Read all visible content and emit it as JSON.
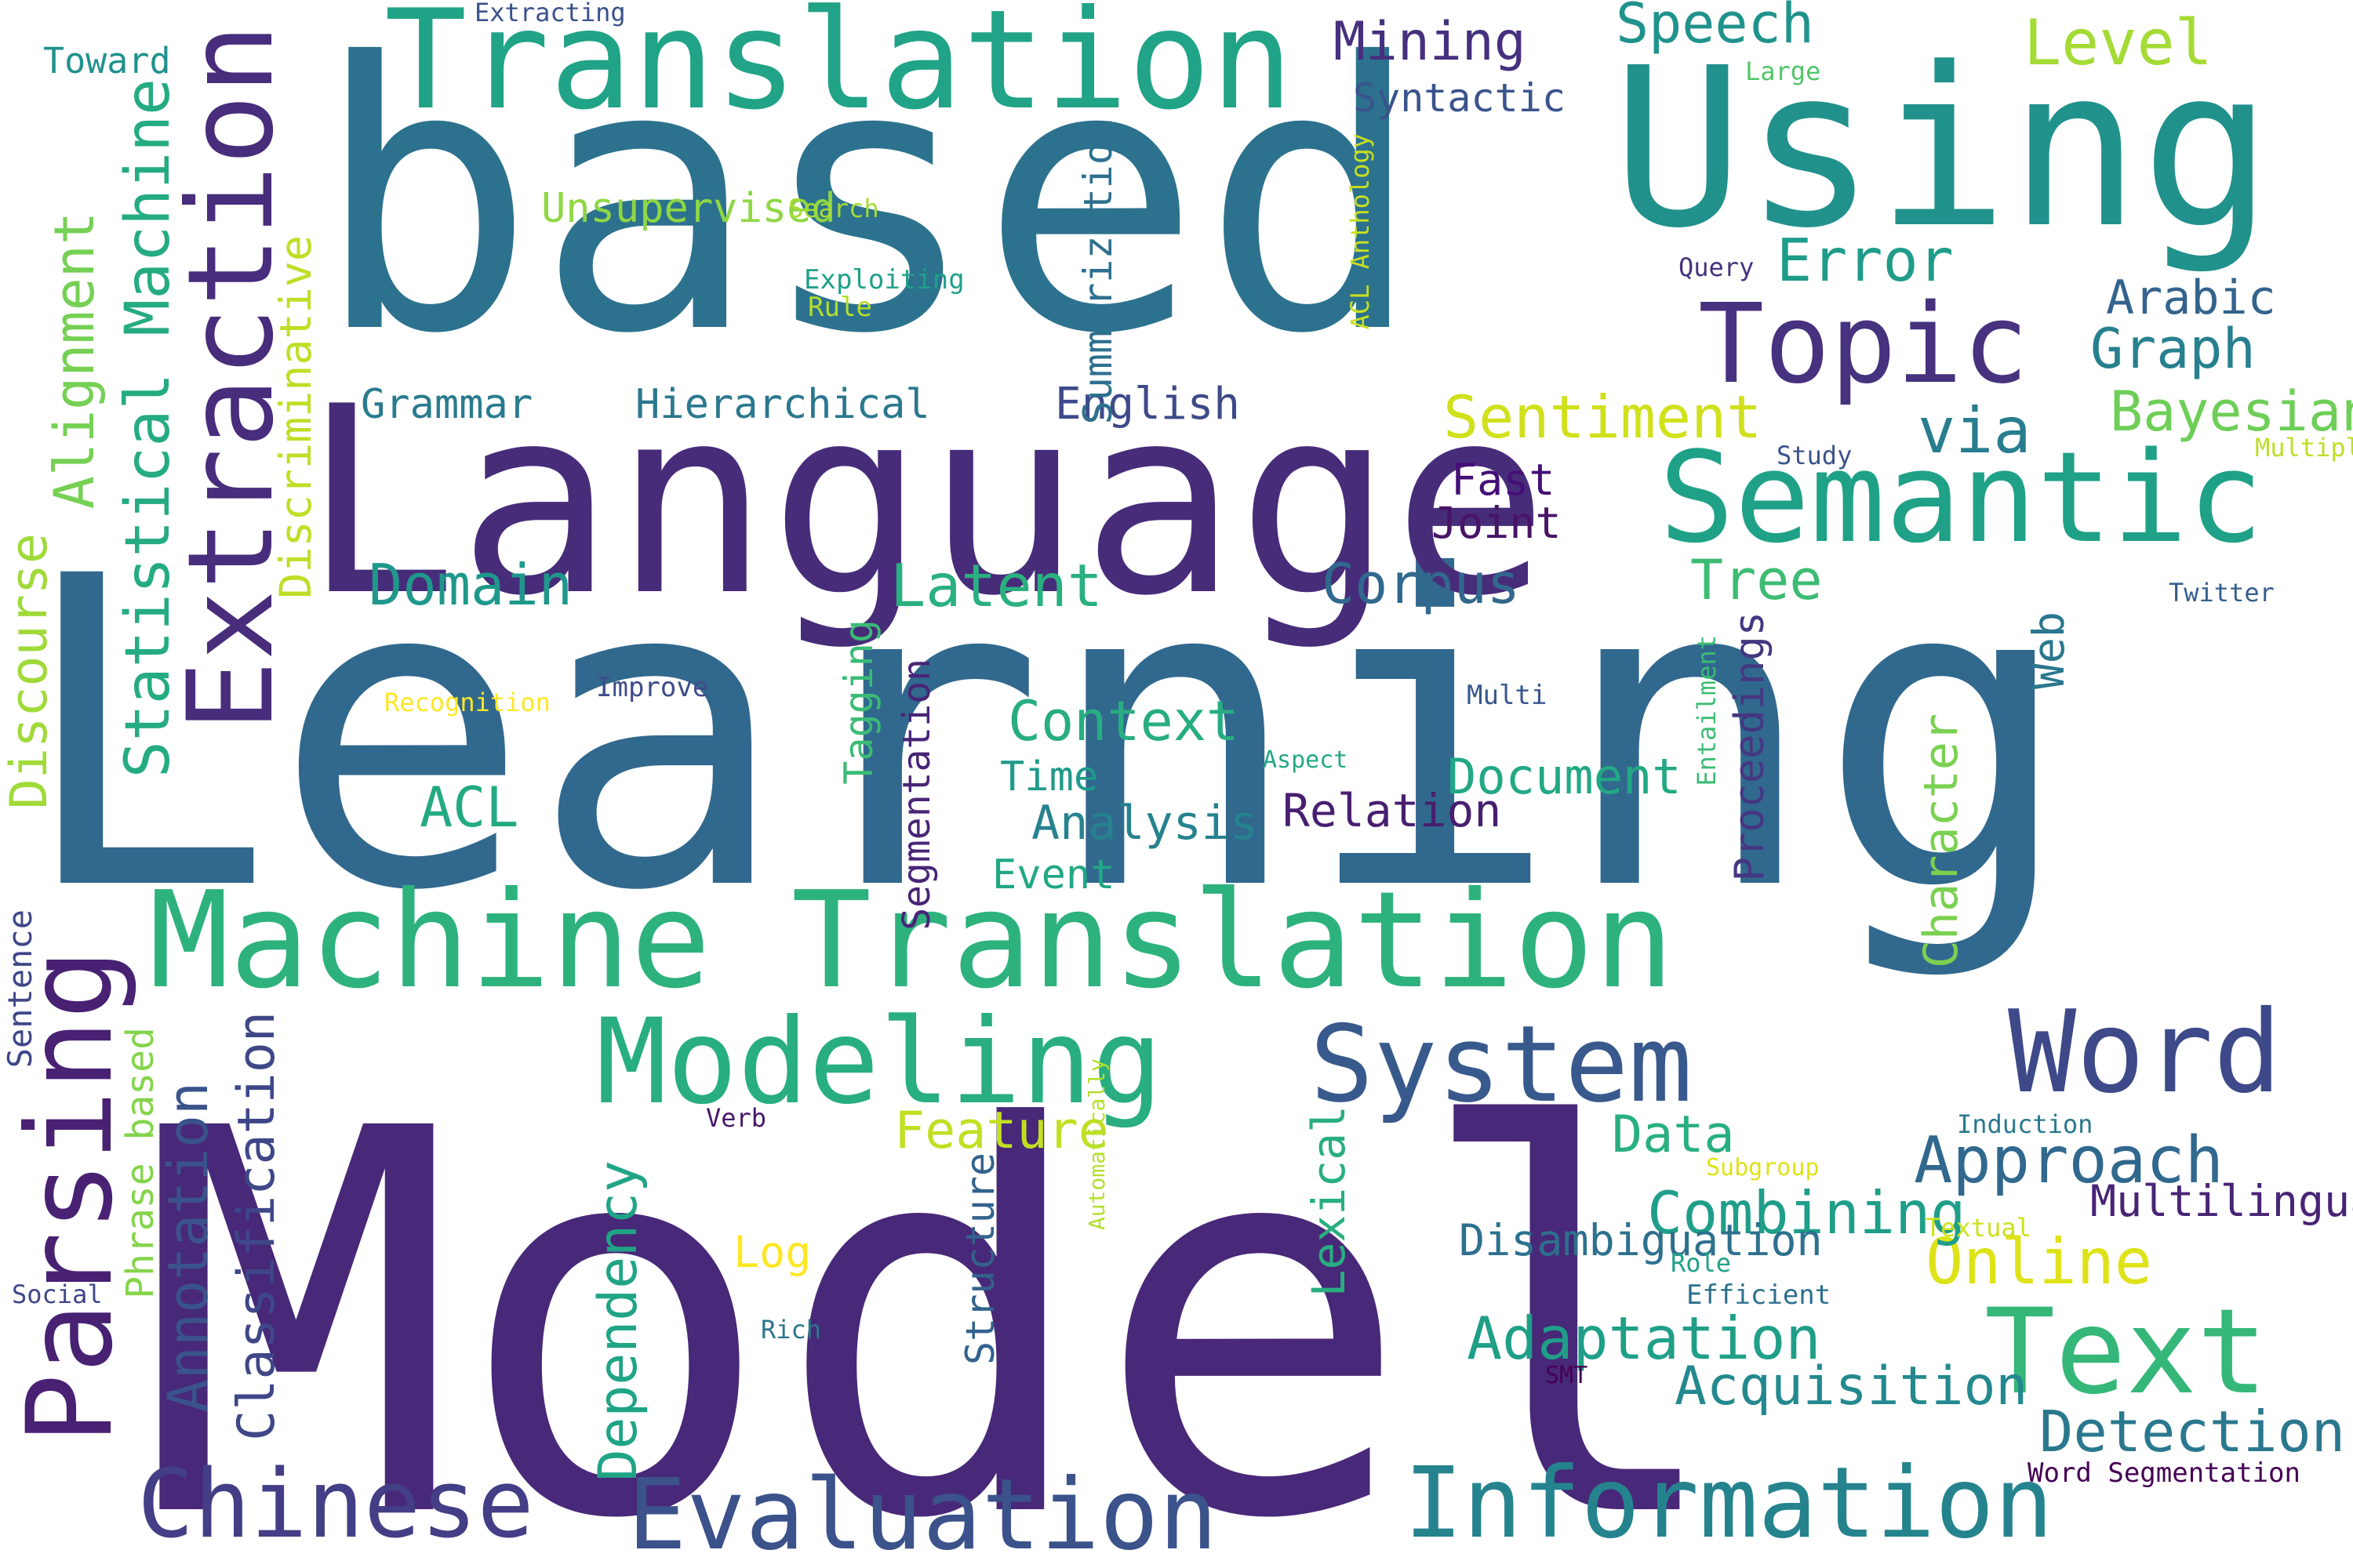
{
  "words": [
    {
      "key": "model",
      "text": "Model",
      "color": "#482878"
    },
    {
      "key": "learning",
      "text": "Learning",
      "color": "#31688e"
    },
    {
      "key": "based",
      "text": "based",
      "color": "#2c728e"
    },
    {
      "key": "language",
      "text": "Language",
      "color": "#472c7a"
    },
    {
      "key": "using",
      "text": "Using",
      "color": "#21918c"
    },
    {
      "key": "translation_top",
      "text": "Translation",
      "color": "#20a386"
    },
    {
      "key": "machine_translation",
      "text": "Machine Translation",
      "color": "#2db27d"
    },
    {
      "key": "semantic",
      "text": "Semantic",
      "color": "#1fa187"
    },
    {
      "key": "topic",
      "text": "Topic",
      "color": "#46327e"
    },
    {
      "key": "extraction",
      "text": "Extraction",
      "color": "#472d7b"
    },
    {
      "key": "parsing",
      "text": "Parsing",
      "color": "#482173"
    },
    {
      "key": "modeling",
      "text": "Modeling",
      "color": "#28ae80"
    },
    {
      "key": "system",
      "text": "System",
      "color": "#38598c"
    },
    {
      "key": "word",
      "text": "Word",
      "color": "#3e4989"
    },
    {
      "key": "text",
      "text": "Text",
      "color": "#35b779"
    },
    {
      "key": "evaluation",
      "text": "Evaluation",
      "color": "#3b528b"
    },
    {
      "key": "information",
      "text": "Information",
      "color": "#25838e"
    },
    {
      "key": "chinese",
      "text": "Chinese",
      "color": "#433e85"
    },
    {
      "key": "statistical_machine",
      "text": "Statistical Machine",
      "color": "#25ab82"
    },
    {
      "key": "alignment",
      "text": "Alignment",
      "color": "#75d054"
    },
    {
      "key": "discourse",
      "text": "Discourse",
      "color": "#a0da39"
    },
    {
      "key": "discriminative",
      "text": "Discriminative",
      "color": "#bddf26"
    },
    {
      "key": "annotation",
      "text": "Annotation",
      "color": "#297b8e"
    },
    {
      "key": "classification",
      "text": "Classification",
      "color": "#2a788e"
    },
    {
      "key": "phrase_based",
      "text": "Phrase based",
      "color": "#3e4a89"
    },
    {
      "key": "sentence",
      "text": "Sentence",
      "color": "#d0e11c"
    },
    {
      "key": "dependency",
      "text": "Dependency",
      "color": "#31688e"
    },
    {
      "key": "structure",
      "text": "Structure",
      "color": "#dde318"
    },
    {
      "key": "lexical",
      "text": "Lexical",
      "color": "#1f988b"
    },
    {
      "key": "toward",
      "text": "Toward",
      "color": "#2ab07f"
    },
    {
      "key": "grammar",
      "text": "Grammar",
      "color": "#31688e"
    },
    {
      "key": "hierarchical",
      "text": "Hierarchical",
      "color": "#3dbc74"
    },
    {
      "key": "english",
      "text": "English",
      "color": "#46307e"
    },
    {
      "key": "sentiment",
      "text": "Sentiment",
      "color": "#20928c"
    },
    {
      "key": "approach",
      "text": "Approach",
      "color": "#a5db36"
    },
    {
      "key": "online",
      "text": "Online",
      "color": "#1e9c89"
    },
    {
      "key": "domain",
      "text": "Domain",
      "color": "#33638d"
    },
    {
      "key": "latent",
      "text": "Latent",
      "color": "#27808e"
    },
    {
      "key": "corpus",
      "text": "Corpus",
      "color": "#6ece58"
    },
    {
      "key": "tree",
      "text": "Tree",
      "color": "#287d8e"
    },
    {
      "key": "mining",
      "text": "Mining",
      "color": "#440f76"
    },
    {
      "key": "speech",
      "text": "Speech",
      "color": "#481467"
    },
    {
      "key": "level",
      "text": "Level",
      "color": "#27ad81"
    },
    {
      "key": "error",
      "text": "Error",
      "color": "#24aa83"
    },
    {
      "key": "arabic",
      "text": "Arabic",
      "color": "#1f9a8a"
    },
    {
      "key": "graph",
      "text": "Graph",
      "color": "#26828e"
    },
    {
      "key": "bayesian",
      "text": "Bayesian",
      "color": "#22a785"
    },
    {
      "key": "via",
      "text": "via",
      "color": "#481f70"
    },
    {
      "key": "fast",
      "text": "Fast",
      "color": "#22a884"
    },
    {
      "key": "joint",
      "text": "Joint",
      "color": "#c2df23"
    },
    {
      "key": "context",
      "text": "Context",
      "color": "#29af7f"
    },
    {
      "key": "acl",
      "text": "ACL",
      "color": "#1f9e89"
    },
    {
      "key": "time",
      "text": "Time",
      "color": "#2d708e"
    },
    {
      "key": "analysis",
      "text": "Analysis",
      "color": "#1f9f88"
    },
    {
      "key": "event",
      "text": "Event",
      "color": "#23898e"
    },
    {
      "key": "relation",
      "text": "Relation",
      "color": "#2a788e"
    },
    {
      "key": "document",
      "text": "Document",
      "color": "#482475"
    },
    {
      "key": "feature",
      "text": "Feature",
      "color": "#3a548c"
    },
    {
      "key": "data",
      "text": "Data",
      "color": "#8fd744"
    },
    {
      "key": "combining",
      "text": "Combining",
      "color": "#2d708e"
    },
    {
      "key": "disambiguation",
      "text": "Disambiguation",
      "color": "#3bbb75"
    },
    {
      "key": "adaptation",
      "text": "Adaptation",
      "color": "#482576"
    },
    {
      "key": "acquisition",
      "text": "Acquisition",
      "color": "#453781"
    },
    {
      "key": "detection",
      "text": "Detection",
      "color": "#7ad151"
    },
    {
      "key": "multilingual",
      "text": "Multilingual",
      "color": "#2a778e"
    },
    {
      "key": "syntactic",
      "text": "Syntactic",
      "color": "#3a538b"
    },
    {
      "key": "unsupervised",
      "text": "Unsupervised",
      "color": "#3f4788"
    },
    {
      "key": "summarization",
      "text": "Summarization",
      "color": "#84d44b"
    },
    {
      "key": "tagging",
      "text": "Tagging",
      "color": "#20a486"
    },
    {
      "key": "segmentation",
      "text": "Segmentation",
      "color": "#33628d"
    },
    {
      "key": "proceedings",
      "text": "Proceedings",
      "color": "#28ae80"
    },
    {
      "key": "character",
      "text": "Character",
      "color": "#3f4788"
    },
    {
      "key": "web",
      "text": "Web",
      "color": "#21918c"
    },
    {
      "key": "acl_anthology",
      "text": "ACL Anthology",
      "color": "#c8e020"
    },
    {
      "key": "entailment",
      "text": "Entailment",
      "color": "#3dbc74"
    },
    {
      "key": "automatically",
      "text": "Automatically",
      "color": "#3b528b"
    },
    {
      "key": "extracting",
      "text": "Extracting",
      "color": "#52c569"
    },
    {
      "key": "large",
      "text": "Large",
      "color": "#a8db34"
    },
    {
      "key": "search",
      "text": "Search",
      "color": "#1fa088"
    },
    {
      "key": "exploiting",
      "text": "Exploiting",
      "color": "#b5de2b"
    },
    {
      "key": "rule",
      "text": "Rule",
      "color": "#46327e"
    },
    {
      "key": "query",
      "text": "Query",
      "color": "#3b528b"
    },
    {
      "key": "study",
      "text": "Study",
      "color": "#bddf26"
    },
    {
      "key": "multiple",
      "text": "Multiple",
      "color": "#355f8d"
    },
    {
      "key": "twitter",
      "text": "Twitter",
      "color": "#fde725"
    },
    {
      "key": "recognition",
      "text": "Recognition",
      "color": "#3e4c8a"
    },
    {
      "key": "improve",
      "text": "Improve",
      "color": "#39568c"
    },
    {
      "key": "multi",
      "text": "Multi",
      "color": "#22a884"
    },
    {
      "key": "aspect",
      "text": "Aspect",
      "color": "#481769"
    },
    {
      "key": "verb",
      "text": "Verb",
      "color": "#b5de2b"
    },
    {
      "key": "induction",
      "text": "Induction",
      "color": "#2a788e"
    },
    {
      "key": "subgroup",
      "text": "Subgroup",
      "color": "#dde318"
    },
    {
      "key": "textual",
      "text": "Textual",
      "color": "#cde11d"
    },
    {
      "key": "role",
      "text": "Role",
      "color": "#1fa088"
    },
    {
      "key": "efficient",
      "text": "Efficient",
      "color": "#2d708e"
    },
    {
      "key": "log",
      "text": "Log",
      "color": "#fde725"
    },
    {
      "key": "rich",
      "text": "Rich",
      "color": "#2a778e"
    },
    {
      "key": "smt",
      "text": "SMT",
      "color": "#440154"
    },
    {
      "key": "social",
      "text": "Social",
      "color": "#404688"
    },
    {
      "key": "word_segmentation",
      "text": "Word Segmentation",
      "color": "#440154"
    }
  ]
}
